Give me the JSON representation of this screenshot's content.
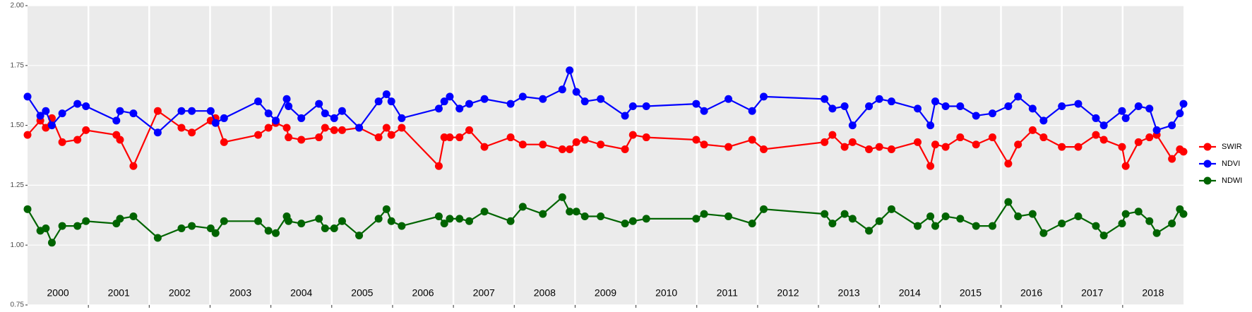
{
  "chart_data": {
    "type": "line",
    "x": [
      2000.0,
      2000.21,
      2000.3,
      2000.4,
      2000.57,
      2000.82,
      2000.96,
      2001.46,
      2001.52,
      2001.74,
      2002.14,
      2002.53,
      2002.7,
      2003.01,
      2003.09,
      2003.23,
      2003.79,
      2003.96,
      2004.08,
      2004.26,
      2004.29,
      2004.5,
      2004.79,
      2004.89,
      2005.04,
      2005.17,
      2005.45,
      2005.77,
      2005.9,
      2005.98,
      2006.15,
      2006.76,
      2006.85,
      2006.94,
      2007.1,
      2007.26,
      2007.51,
      2007.94,
      2008.14,
      2008.47,
      2008.79,
      2008.91,
      2009.02,
      2009.16,
      2009.42,
      2009.82,
      2009.95,
      2010.17,
      2010.99,
      2011.12,
      2011.52,
      2011.91,
      2012.1,
      2013.1,
      2013.23,
      2013.43,
      2013.56,
      2013.83,
      2014.0,
      2014.2,
      2014.63,
      2014.84,
      2014.92,
      2015.09,
      2015.33,
      2015.59,
      2015.86,
      2016.12,
      2016.28,
      2016.52,
      2016.7,
      2017.0,
      2017.27,
      2017.56,
      2017.69,
      2017.99,
      2018.05,
      2018.26,
      2018.44,
      2018.56,
      2018.81,
      2018.94,
      2019.0
    ],
    "series": [
      {
        "name": "SWIR",
        "color": "#ff0000",
        "values": [
          1.46,
          1.52,
          1.49,
          1.53,
          1.43,
          1.44,
          1.48,
          1.46,
          1.44,
          1.33,
          1.56,
          1.49,
          1.47,
          1.52,
          1.53,
          1.43,
          1.46,
          1.49,
          1.51,
          1.49,
          1.45,
          1.44,
          1.45,
          1.49,
          1.48,
          1.48,
          1.49,
          1.45,
          1.49,
          1.46,
          1.49,
          1.33,
          1.45,
          1.45,
          1.45,
          1.48,
          1.41,
          1.45,
          1.42,
          1.42,
          1.4,
          1.4,
          1.43,
          1.44,
          1.42,
          1.4,
          1.46,
          1.45,
          1.44,
          1.42,
          1.41,
          1.44,
          1.4,
          1.43,
          1.46,
          1.41,
          1.43,
          1.4,
          1.41,
          1.4,
          1.43,
          1.33,
          1.42,
          1.41,
          1.45,
          1.42,
          1.45,
          1.34,
          1.42,
          1.48,
          1.45,
          1.41,
          1.41,
          1.46,
          1.44,
          1.41,
          1.33,
          1.43,
          1.45,
          1.46,
          1.36,
          1.4,
          1.39
        ]
      },
      {
        "name": "NDVI",
        "color": "#0000ff",
        "values": [
          1.62,
          1.54,
          1.56,
          1.5,
          1.55,
          1.59,
          1.58,
          1.52,
          1.56,
          1.55,
          1.47,
          1.56,
          1.56,
          1.56,
          1.51,
          1.53,
          1.6,
          1.55,
          1.52,
          1.61,
          1.58,
          1.53,
          1.59,
          1.55,
          1.53,
          1.56,
          1.49,
          1.6,
          1.63,
          1.6,
          1.53,
          1.57,
          1.6,
          1.62,
          1.57,
          1.59,
          1.61,
          1.59,
          1.62,
          1.61,
          1.65,
          1.73,
          1.64,
          1.6,
          1.61,
          1.54,
          1.58,
          1.58,
          1.59,
          1.56,
          1.61,
          1.56,
          1.62,
          1.61,
          1.57,
          1.58,
          1.5,
          1.58,
          1.61,
          1.6,
          1.57,
          1.5,
          1.6,
          1.58,
          1.58,
          1.54,
          1.55,
          1.58,
          1.62,
          1.57,
          1.52,
          1.58,
          1.59,
          1.53,
          1.5,
          1.56,
          1.53,
          1.58,
          1.57,
          1.48,
          1.5,
          1.55,
          1.59
        ]
      },
      {
        "name": "NDWI",
        "color": "#006400",
        "values": [
          1.15,
          1.06,
          1.07,
          1.01,
          1.08,
          1.08,
          1.1,
          1.09,
          1.11,
          1.12,
          1.03,
          1.07,
          1.08,
          1.07,
          1.05,
          1.1,
          1.1,
          1.06,
          1.05,
          1.12,
          1.1,
          1.09,
          1.11,
          1.07,
          1.07,
          1.1,
          1.04,
          1.11,
          1.15,
          1.1,
          1.08,
          1.12,
          1.09,
          1.11,
          1.11,
          1.1,
          1.14,
          1.1,
          1.16,
          1.13,
          1.2,
          1.14,
          1.14,
          1.12,
          1.12,
          1.09,
          1.1,
          1.11,
          1.11,
          1.13,
          1.12,
          1.09,
          1.15,
          1.13,
          1.09,
          1.13,
          1.11,
          1.06,
          1.1,
          1.15,
          1.08,
          1.12,
          1.08,
          1.12,
          1.11,
          1.08,
          1.08,
          1.18,
          1.12,
          1.13,
          1.05,
          1.09,
          1.12,
          1.08,
          1.04,
          1.09,
          1.13,
          1.14,
          1.1,
          1.05,
          1.09,
          1.15,
          1.13
        ]
      }
    ],
    "xlim": [
      2000,
      2019
    ],
    "xticks": [
      {
        "value": 2000.5,
        "label": "2000"
      },
      {
        "value": 2001.5,
        "label": "2001"
      },
      {
        "value": 2002.5,
        "label": "2002"
      },
      {
        "value": 2003.5,
        "label": "2003"
      },
      {
        "value": 2004.5,
        "label": "2004"
      },
      {
        "value": 2005.5,
        "label": "2005"
      },
      {
        "value": 2006.5,
        "label": "2006"
      },
      {
        "value": 2007.5,
        "label": "2007"
      },
      {
        "value": 2008.5,
        "label": "2008"
      },
      {
        "value": 2009.5,
        "label": "2009"
      },
      {
        "value": 2010.5,
        "label": "2010"
      },
      {
        "value": 2011.5,
        "label": "2011"
      },
      {
        "value": 2012.5,
        "label": "2012"
      },
      {
        "value": 2013.5,
        "label": "2013"
      },
      {
        "value": 2014.5,
        "label": "2014"
      },
      {
        "value": 2015.5,
        "label": "2015"
      },
      {
        "value": 2016.5,
        "label": "2016"
      },
      {
        "value": 2017.5,
        "label": "2017"
      },
      {
        "value": 2018.5,
        "label": "2018"
      }
    ],
    "xbreaks": [
      2001,
      2002,
      2003,
      2004,
      2005,
      2006,
      2007,
      2008,
      2009,
      2010,
      2011,
      2012,
      2013,
      2014,
      2015,
      2016,
      2017,
      2018
    ],
    "ylim": [
      0.75,
      2.0
    ],
    "yticks": [
      0.75,
      {
        "value": 1.0,
        "label": "1.00"
      },
      1.25,
      {
        "value": 1.5,
        "label": "1.50"
      },
      1.75,
      {
        "value": 2.0,
        "label": "2.00"
      }
    ],
    "grid": true,
    "legend": "right"
  }
}
